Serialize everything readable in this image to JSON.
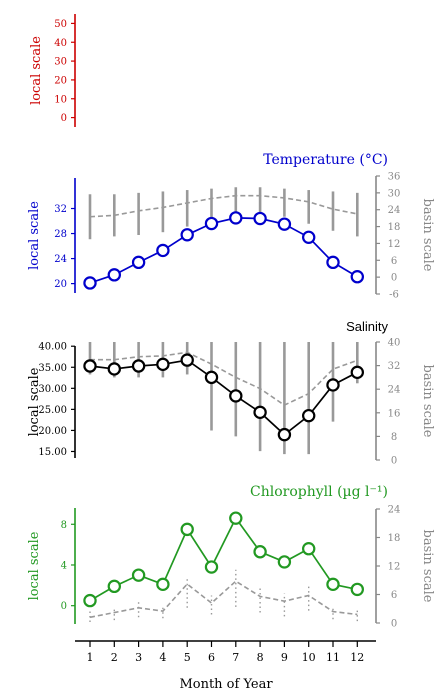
{
  "chart_data": {
    "type": "line",
    "xlabel": "Month of Year",
    "x": [
      1,
      2,
      3,
      4,
      5,
      6,
      7,
      8,
      9,
      10,
      11,
      12
    ],
    "panels": [
      {
        "id": "empty",
        "title": "",
        "ylabel_left": "local scale",
        "ylabel_right": "",
        "color": "#cc0000",
        "left_ticks": [
          0,
          10,
          20,
          30,
          40,
          50
        ],
        "left_ylim": [
          -5,
          55
        ],
        "right_ticks": [],
        "right_ylim": null,
        "local_series": null,
        "basin_mean": null,
        "basin_bars": null
      },
      {
        "id": "temperature",
        "title": "Temperature (°C)",
        "ylabel_left": "local scale",
        "ylabel_right": "basin scale",
        "color": "#0000cc",
        "left_ticks": [
          20,
          24,
          28,
          32
        ],
        "left_ylim": [
          18.5,
          34
        ],
        "right_ticks": [
          -6,
          0,
          6,
          12,
          18,
          24,
          30,
          36
        ],
        "right_ylim": [
          -6,
          36
        ],
        "local_series": [
          20.1,
          21.4,
          23.4,
          25.3,
          27.8,
          29.6,
          30.5,
          30.4,
          29.5,
          27.4,
          23.4,
          21.1
        ],
        "basin_mean": [
          21.5,
          22,
          23.6,
          24.8,
          26.4,
          28,
          29,
          29,
          28.2,
          26.8,
          24.2,
          22.5
        ],
        "basin_bars": [
          [
            13.5,
            29.5
          ],
          [
            14.5,
            29.5
          ],
          [
            15,
            30
          ],
          [
            16,
            30.5
          ],
          [
            18,
            31
          ],
          [
            20,
            31.5
          ],
          [
            22,
            32
          ],
          [
            22.5,
            32
          ],
          [
            21.5,
            31.5
          ],
          [
            19,
            31
          ],
          [
            16.5,
            30.5
          ],
          [
            14.5,
            30
          ]
        ]
      },
      {
        "id": "salinity",
        "title": "Salinity",
        "ylabel_left": "local scale",
        "ylabel_right": "basin scale",
        "color": "#000000",
        "left_ticks": [
          15,
          20,
          25,
          30,
          35,
          40
        ],
        "left_labels": [
          "15.00",
          "20.00",
          "25.00",
          "30.00",
          "35.00",
          "40.00"
        ],
        "left_ylim": [
          12.5,
          41
        ],
        "right_ticks": [
          0,
          8,
          16,
          24,
          32,
          40
        ],
        "right_ylim": [
          0,
          40
        ],
        "local_series": [
          35.3,
          34.6,
          35.3,
          35.7,
          36.7,
          32.6,
          28.2,
          24.3,
          19,
          23.5,
          30.8,
          33.8
        ],
        "basin_mean": [
          34,
          34,
          35,
          35.3,
          36.5,
          32.5,
          28,
          24.2,
          18.6,
          22.5,
          30.8,
          33.8
        ],
        "basin_bars": [
          [
            29,
            40
          ],
          [
            28,
            40
          ],
          [
            28,
            40
          ],
          [
            28,
            40
          ],
          [
            29,
            40
          ],
          [
            10,
            40
          ],
          [
            8,
            40
          ],
          [
            3,
            40
          ],
          [
            2,
            40
          ],
          [
            2,
            40
          ],
          [
            13,
            40
          ],
          [
            26,
            40
          ]
        ]
      },
      {
        "id": "chlorophyll",
        "title": "Chlorophyll (µg l⁻¹)",
        "ylabel_left": "local scale",
        "ylabel_right": "basin scale",
        "color": "#229922",
        "left_ticks": [
          0,
          4,
          8
        ],
        "left_ylim": [
          -1.8,
          9.6
        ],
        "right_ticks": [
          0,
          6,
          12,
          18,
          24
        ],
        "right_ylim": [
          0,
          24
        ],
        "local_series": [
          0.5,
          1.9,
          3.0,
          2.1,
          7.5,
          3.8,
          8.6,
          5.3,
          4.3,
          5.6,
          2.1,
          1.6
        ],
        "basin_mean": [
          1.2,
          2.2,
          3.2,
          2.5,
          8.2,
          4.2,
          8.8,
          5.6,
          4.6,
          5.8,
          2.4,
          1.8
        ],
        "basin_bars": [
          [
            0.2,
            2.6
          ],
          [
            0.6,
            3.2
          ],
          [
            1.2,
            4.6
          ],
          [
            1.0,
            3.6
          ],
          [
            3.2,
            9.8
          ],
          [
            1.8,
            5.8
          ],
          [
            3.4,
            11.2
          ],
          [
            2.2,
            7.4
          ],
          [
            1.4,
            6.2
          ],
          [
            2.6,
            7.8
          ],
          [
            0.8,
            3.4
          ],
          [
            0.4,
            3.0
          ]
        ]
      }
    ]
  }
}
